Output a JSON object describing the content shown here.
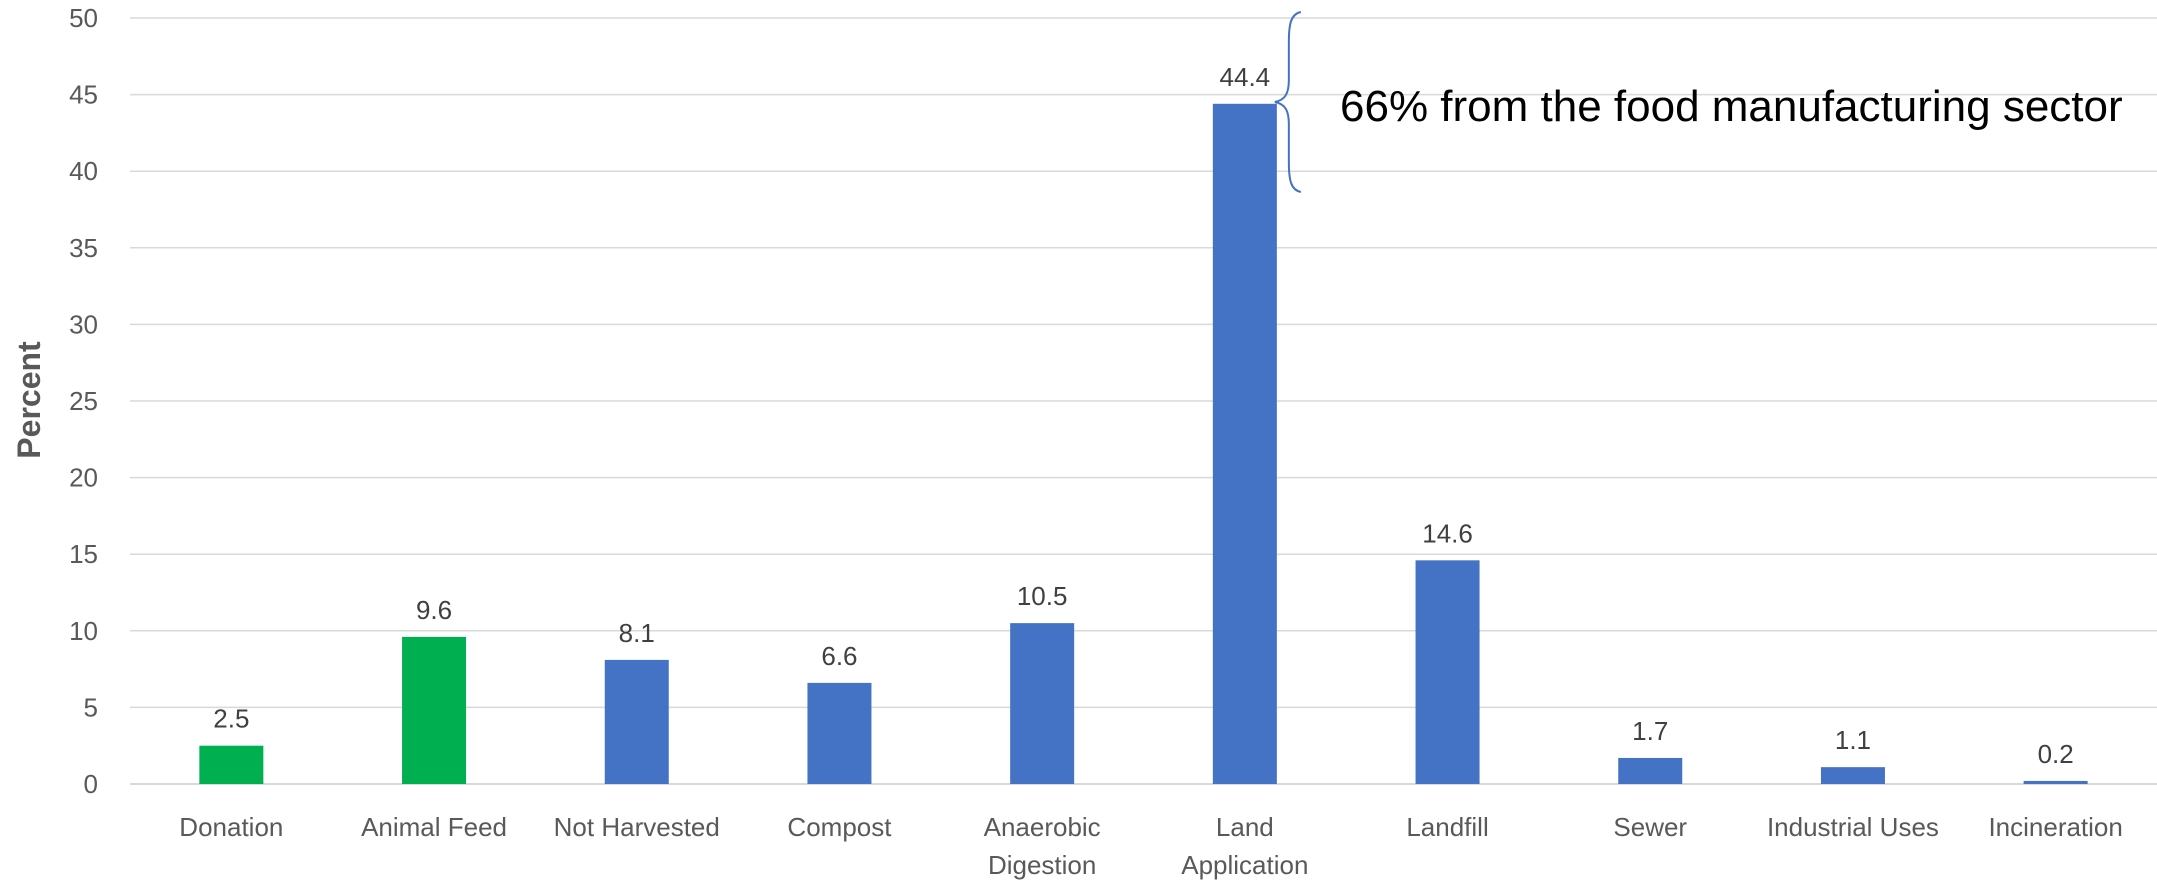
{
  "chart_data": {
    "type": "bar",
    "categories": [
      [
        "Donation"
      ],
      [
        "Animal Feed"
      ],
      [
        "Not Harvested"
      ],
      [
        "Compost"
      ],
      [
        "Anaerobic",
        "Digestion"
      ],
      [
        "Land",
        "Application"
      ],
      [
        "Landfill"
      ],
      [
        "Sewer"
      ],
      [
        "Industrial Uses"
      ],
      [
        "Incineration"
      ]
    ],
    "values": [
      2.5,
      9.6,
      8.1,
      6.6,
      10.5,
      44.4,
      14.6,
      1.7,
      1.1,
      0.2
    ],
    "bar_colors": [
      "#00b050",
      "#00b050",
      "#4472c4",
      "#4472c4",
      "#4472c4",
      "#4472c4",
      "#4472c4",
      "#4472c4",
      "#4472c4",
      "#4472c4"
    ],
    "title": "",
    "xlabel": "",
    "ylabel": "Percent",
    "ylim": [
      0,
      50
    ],
    "yticks": [
      0,
      5,
      10,
      15,
      20,
      25,
      30,
      35,
      40,
      45,
      50
    ],
    "grid": true,
    "legend": "none",
    "annotation": {
      "text": "66% from the food manufacturing sector",
      "target_category": "Land Application",
      "brace_color": "#4472c4"
    }
  }
}
